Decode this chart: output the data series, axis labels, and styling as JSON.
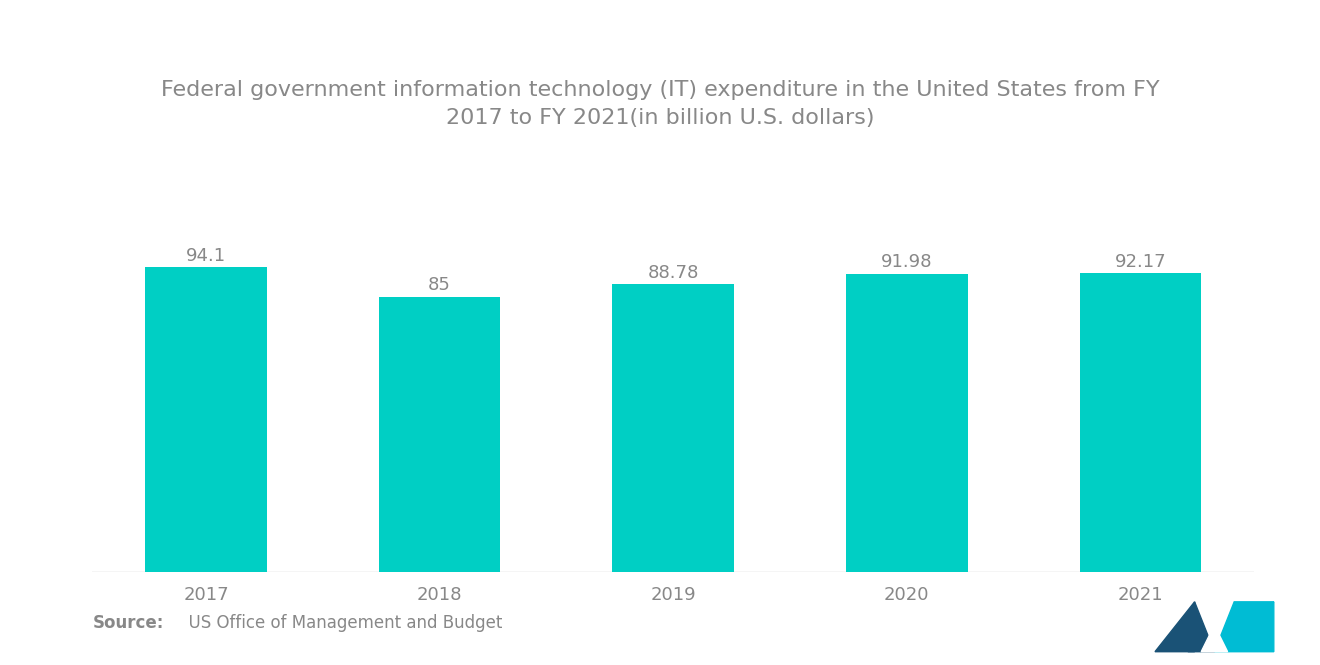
{
  "title": "Federal government information technology (IT) expenditure in the United States from FY\n2017 to FY 2021(in billion U.S. dollars)",
  "categories": [
    "2017",
    "2018",
    "2019",
    "2020",
    "2021"
  ],
  "values": [
    94.1,
    85,
    88.78,
    91.98,
    92.17
  ],
  "bar_color": "#00CFC4",
  "value_labels": [
    "94.1",
    "85",
    "88.78",
    "91.98",
    "92.17"
  ],
  "source_bold": "Source:",
  "source_text": "  US Office of Management and Budget",
  "title_fontsize": 16,
  "label_fontsize": 13,
  "tick_fontsize": 13,
  "source_fontsize": 12,
  "ylim": [
    0,
    115
  ],
  "background_color": "#ffffff",
  "text_color": "#888888",
  "bar_width": 0.52,
  "logo_dark_color": "#1a5276",
  "logo_teal_color": "#00BCD4",
  "logo_mid_color": "#2e86c1"
}
